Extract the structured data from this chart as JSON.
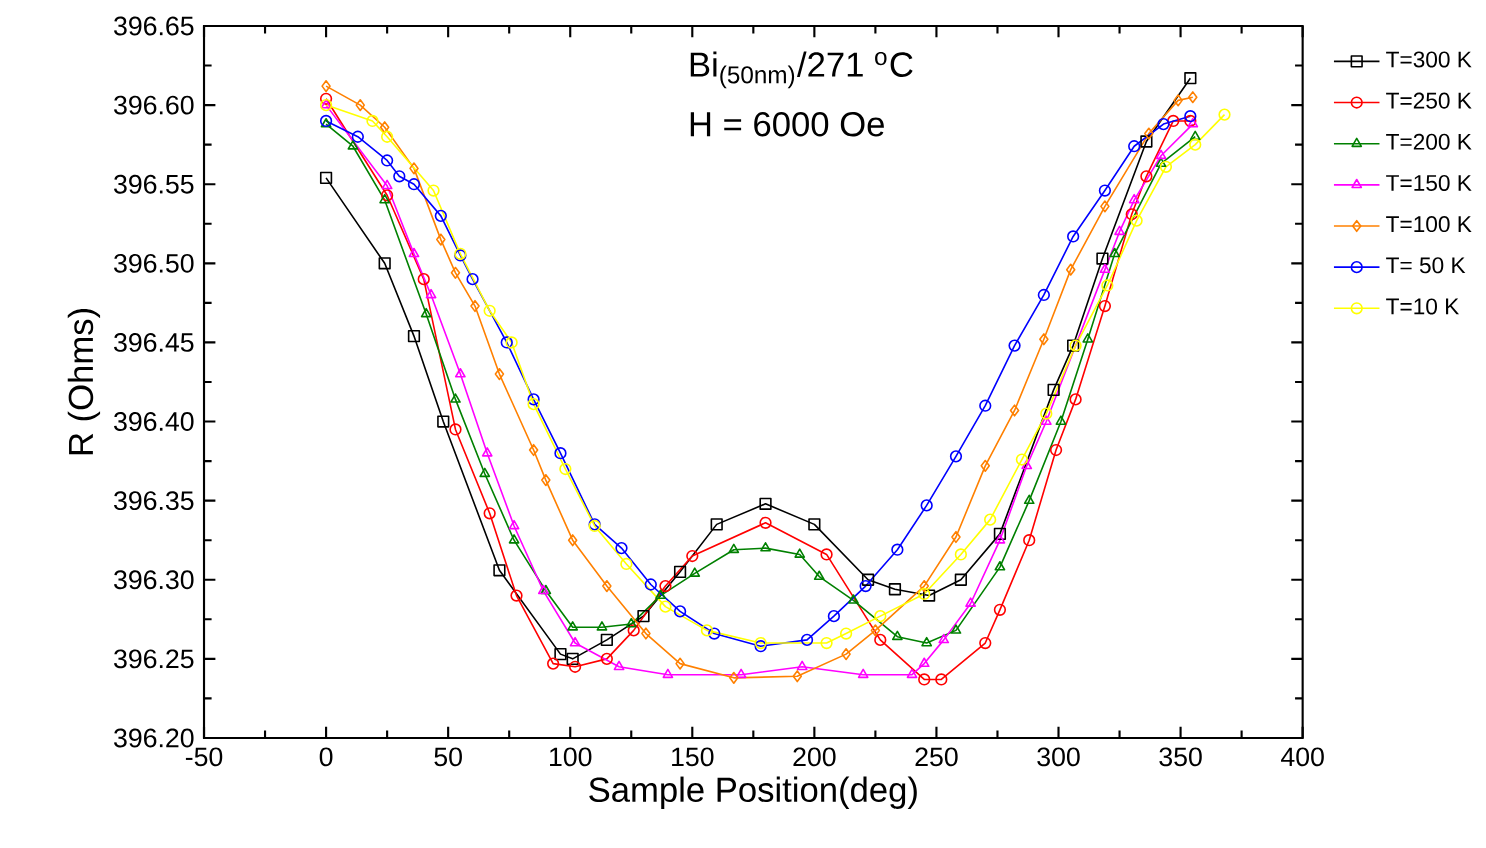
{
  "chart_data": {
    "type": "line",
    "title": "Bi$_{(50nm)}$/271 $^{o}$C",
    "annotations": [
      "H = 6000 Oe"
    ],
    "xlabel": "Sample Position(deg)",
    "ylabel": "R (Ohms)",
    "xlim": [
      -50,
      400
    ],
    "xticks": [
      -50,
      0,
      50,
      100,
      150,
      200,
      250,
      300,
      350,
      400
    ],
    "ylim": [
      396.2,
      396.65
    ],
    "yticks": [
      {
        "value": 396.2,
        "label": "396.20"
      },
      {
        "value": 396.25,
        "label": "396.25"
      },
      {
        "value": 396.3,
        "label": "396.30"
      },
      {
        "value": 396.35,
        "label": "396.35"
      },
      {
        "value": 396.4,
        "label": "396.40"
      },
      {
        "value": 396.45,
        "label": "396.45"
      },
      {
        "value": 396.5,
        "label": "396.50"
      },
      {
        "value": 396.55,
        "label": "396.55"
      },
      {
        "value": 396.6,
        "label": "396.60"
      },
      {
        "value": 396.65,
        "label": "396.65"
      }
    ],
    "grid": false,
    "legend": "right",
    "line_style": "solid",
    "series": [
      {
        "name": "T=300 K",
        "color": "#000000",
        "marker": "square",
        "x": [
          0,
          24,
          36,
          48,
          71,
          96,
          101,
          115,
          130,
          145,
          160,
          180,
          200,
          222,
          233,
          247,
          260,
          276,
          298,
          306,
          318,
          336,
          354
        ],
        "values": [
          396.554,
          396.5,
          396.454,
          396.4,
          396.306,
          396.253,
          396.25,
          396.262,
          396.277,
          396.305,
          396.335,
          396.348,
          396.335,
          396.3,
          396.294,
          396.29,
          396.3,
          396.329,
          396.42,
          396.448,
          396.503,
          396.577,
          396.617
        ]
      },
      {
        "name": "T=250 K",
        "color": "#ff0000",
        "marker": "circle",
        "x": [
          0,
          25,
          40,
          53,
          67,
          78,
          93,
          102,
          115,
          126,
          139,
          150,
          180,
          205,
          227,
          245,
          252,
          270,
          276,
          288,
          299,
          307,
          319,
          330,
          336,
          347,
          354
        ],
        "values": [
          396.604,
          396.543,
          396.49,
          396.395,
          396.342,
          396.29,
          396.247,
          396.245,
          396.25,
          396.268,
          396.296,
          396.315,
          396.336,
          396.316,
          396.262,
          396.237,
          396.237,
          396.26,
          396.281,
          396.325,
          396.382,
          396.414,
          396.473,
          396.531,
          396.555,
          396.59,
          396.59
        ]
      },
      {
        "name": "T=200 K",
        "color": "#008000",
        "marker": "triangle",
        "x": [
          0,
          11,
          24,
          41,
          53,
          65,
          77,
          90,
          101,
          113,
          125,
          137,
          151,
          167,
          180,
          194,
          202,
          216,
          234,
          246,
          258,
          276,
          288,
          301,
          312,
          323,
          342,
          356
        ],
        "values": [
          396.588,
          396.574,
          396.54,
          396.468,
          396.414,
          396.367,
          396.325,
          396.293,
          396.27,
          396.27,
          396.272,
          396.29,
          396.304,
          396.319,
          396.32,
          396.316,
          396.302,
          396.287,
          396.264,
          396.26,
          396.268,
          396.308,
          396.35,
          396.4,
          396.452,
          396.506,
          396.563,
          396.58
        ]
      },
      {
        "name": "T=150 K",
        "color": "#ff00ff",
        "marker": "triangle",
        "x": [
          0,
          25,
          36,
          43,
          55,
          66,
          77,
          89,
          102,
          120,
          140,
          170,
          195,
          220,
          240,
          245,
          253,
          264,
          276,
          287,
          295,
          319,
          325,
          331,
          342,
          355
        ],
        "values": [
          396.6,
          396.549,
          396.506,
          396.48,
          396.43,
          396.38,
          396.334,
          396.293,
          396.26,
          396.245,
          396.24,
          396.24,
          396.245,
          396.24,
          396.24,
          396.247,
          396.262,
          396.285,
          396.325,
          396.372,
          396.4,
          396.496,
          396.52,
          396.54,
          396.568,
          396.588
        ]
      },
      {
        "name": "T=100 K",
        "color": "#ff8000",
        "marker": "diamond",
        "x": [
          0,
          14,
          24,
          36,
          47,
          53,
          61,
          71,
          85,
          90,
          101,
          115,
          131,
          145,
          167,
          193,
          213,
          225,
          245,
          258,
          270,
          282,
          294,
          305,
          319,
          337,
          349,
          355
        ],
        "values": [
          396.612,
          396.6,
          396.586,
          396.56,
          396.515,
          396.494,
          396.473,
          396.43,
          396.382,
          396.363,
          396.325,
          396.296,
          396.266,
          396.247,
          396.238,
          396.239,
          396.253,
          396.268,
          396.296,
          396.327,
          396.372,
          396.407,
          396.452,
          396.496,
          396.536,
          396.582,
          396.603,
          396.605
        ]
      },
      {
        "name": "T=  50 K",
        "color": "#0000ff",
        "marker": "circle",
        "x": [
          0,
          13,
          25,
          30,
          36,
          47,
          55,
          60,
          74,
          85,
          96,
          110,
          121,
          133,
          145,
          159,
          178,
          197,
          208,
          221,
          234,
          246,
          258,
          270,
          282,
          294,
          306,
          319,
          331,
          343,
          354
        ],
        "values": [
          396.59,
          396.58,
          396.565,
          396.555,
          396.55,
          396.53,
          396.505,
          396.49,
          396.45,
          396.414,
          396.38,
          396.335,
          396.32,
          396.297,
          396.28,
          396.266,
          396.258,
          396.262,
          396.277,
          396.296,
          396.319,
          396.347,
          396.378,
          396.41,
          396.448,
          396.48,
          396.517,
          396.546,
          396.574,
          396.588,
          396.593
        ]
      },
      {
        "name": "T=10 K",
        "color": "#ffff00",
        "marker": "circle",
        "x": [
          0,
          19,
          25,
          44,
          55,
          67,
          76,
          85,
          98,
          110,
          123,
          139,
          156,
          178,
          205,
          213,
          227,
          245,
          260,
          272,
          285,
          295,
          307,
          320,
          332,
          344,
          356,
          368
        ],
        "values": [
          396.6,
          396.59,
          396.58,
          396.546,
          396.506,
          396.47,
          396.45,
          396.411,
          396.37,
          396.334,
          396.31,
          396.283,
          396.268,
          396.26,
          396.26,
          396.266,
          396.277,
          396.291,
          396.316,
          396.338,
          396.376,
          396.405,
          396.448,
          396.486,
          396.527,
          396.561,
          396.575,
          396.594
        ]
      }
    ]
  }
}
